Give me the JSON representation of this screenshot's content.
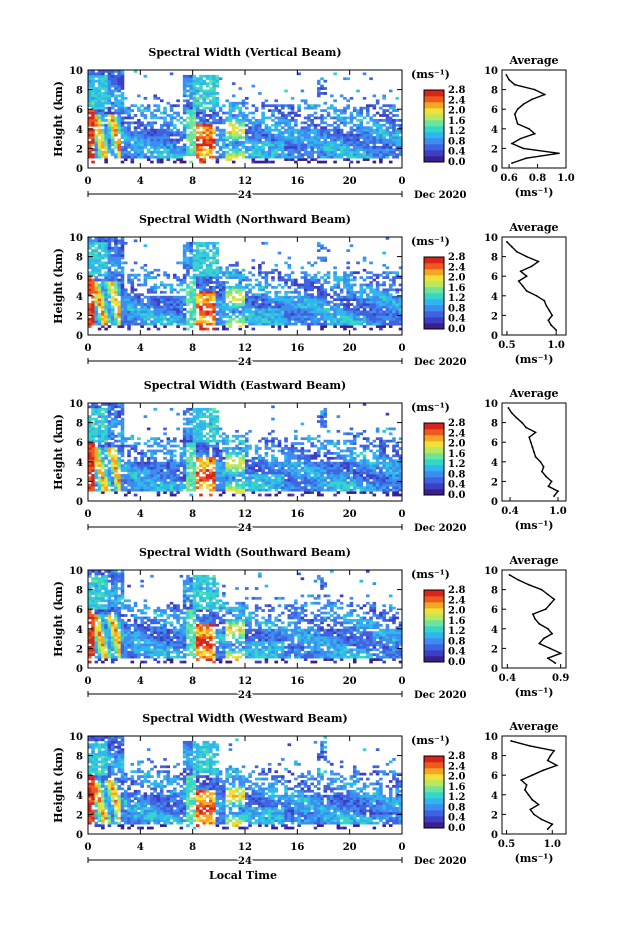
{
  "date_label": "Dec 2020",
  "day_marker": "24",
  "xlabel_bottom": "Local Time",
  "colorbar_unit": "(ms⁻¹)",
  "colorbar_ticks": [
    "0.0",
    "0.4",
    "0.8",
    "1.2",
    "1.6",
    "2.0",
    "2.4",
    "2.8"
  ],
  "colormap": [
    "#3b1f8f",
    "#3c3fc4",
    "#3f63e0",
    "#3d8cf0",
    "#2fb6ee",
    "#35d6c8",
    "#6ee39a",
    "#b8e85c",
    "#f0e03a",
    "#f5a623",
    "#ee5a1d",
    "#d9241b"
  ],
  "chart_data": [
    {
      "type": "heatmap",
      "title": "Spectral Width (Vertical Beam)",
      "ylabel": "Height (km)",
      "ylim": [
        0,
        10
      ],
      "xlim": [
        0,
        24
      ],
      "x_ticks": [
        "0",
        "4",
        "8",
        "12",
        "16",
        "20",
        "0"
      ],
      "y_ticks": [
        "0",
        "2",
        "4",
        "6",
        "8",
        "10"
      ],
      "colorbar_range": [
        0.0,
        2.8
      ],
      "average_profile": {
        "title": "Average",
        "xlabel": "(ms⁻¹)",
        "x_ticks": [
          "0.6",
          "0.8",
          "1.0"
        ],
        "xlim": [
          0.55,
          1.0
        ],
        "height_km": [
          0.5,
          1.0,
          1.5,
          2.0,
          2.5,
          3.0,
          3.5,
          4.0,
          4.5,
          5.0,
          5.5,
          6.0,
          6.5,
          7.0,
          7.5,
          8.0,
          8.5,
          9.0,
          9.5
        ],
        "width": [
          0.62,
          0.72,
          0.95,
          0.7,
          0.62,
          0.68,
          0.78,
          0.74,
          0.66,
          0.65,
          0.64,
          0.66,
          0.7,
          0.76,
          0.85,
          0.78,
          0.64,
          0.6,
          0.58
        ]
      }
    },
    {
      "type": "heatmap",
      "title": "Spectral Width (Northward Beam)",
      "ylabel": "Height (km)",
      "ylim": [
        0,
        10
      ],
      "xlim": [
        0,
        24
      ],
      "x_ticks": [
        "0",
        "4",
        "8",
        "12",
        "16",
        "20",
        "0"
      ],
      "y_ticks": [
        "0",
        "2",
        "4",
        "6",
        "8",
        "10"
      ],
      "colorbar_range": [
        0.0,
        2.8
      ],
      "average_profile": {
        "title": "Average",
        "xlabel": "(ms⁻¹)",
        "x_ticks": [
          "0.5",
          "1.0"
        ],
        "xlim": [
          0.45,
          1.1
        ],
        "height_km": [
          0.5,
          1.0,
          1.5,
          2.0,
          2.5,
          3.0,
          3.5,
          4.0,
          4.5,
          5.0,
          5.5,
          6.0,
          6.5,
          7.0,
          7.5,
          8.0,
          8.5,
          9.0,
          9.5
        ],
        "width": [
          1.0,
          0.95,
          0.92,
          0.96,
          0.93,
          0.9,
          0.88,
          0.8,
          0.7,
          0.66,
          0.62,
          0.7,
          0.64,
          0.75,
          0.82,
          0.7,
          0.6,
          0.55,
          0.5
        ]
      }
    },
    {
      "type": "heatmap",
      "title": "Spectral Width (Eastward Beam)",
      "ylabel": "Height (km)",
      "ylim": [
        0,
        10
      ],
      "xlim": [
        0,
        24
      ],
      "x_ticks": [
        "0",
        "4",
        "8",
        "12",
        "16",
        "20",
        "0"
      ],
      "y_ticks": [
        "0",
        "2",
        "4",
        "6",
        "8",
        "10"
      ],
      "colorbar_range": [
        0.0,
        2.8
      ],
      "average_profile": {
        "title": "Average",
        "xlabel": "(ms⁻¹)",
        "x_ticks": [
          "0.4",
          "1.0"
        ],
        "xlim": [
          0.3,
          1.1
        ],
        "height_km": [
          0.5,
          1.0,
          1.5,
          2.0,
          2.5,
          3.0,
          3.5,
          4.0,
          4.5,
          5.0,
          5.5,
          6.0,
          6.5,
          7.0,
          7.5,
          8.0,
          8.5,
          9.0,
          9.5
        ],
        "width": [
          0.95,
          1.0,
          0.88,
          0.92,
          0.85,
          0.8,
          0.82,
          0.78,
          0.72,
          0.7,
          0.68,
          0.66,
          0.64,
          0.72,
          0.6,
          0.55,
          0.48,
          0.42,
          0.38
        ]
      }
    },
    {
      "type": "heatmap",
      "title": "Spectral Width (Southward Beam)",
      "ylabel": "Height (km)",
      "ylim": [
        0,
        10
      ],
      "xlim": [
        0,
        24
      ],
      "x_ticks": [
        "0",
        "4",
        "8",
        "12",
        "16",
        "20",
        "0"
      ],
      "y_ticks": [
        "0",
        "2",
        "4",
        "6",
        "8",
        "10"
      ],
      "colorbar_range": [
        0.0,
        2.8
      ],
      "average_profile": {
        "title": "Average",
        "xlabel": "(ms⁻¹)",
        "x_ticks": [
          "0.4",
          "0.9"
        ],
        "xlim": [
          0.35,
          0.95
        ],
        "height_km": [
          0.5,
          1.0,
          1.5,
          2.0,
          2.5,
          3.0,
          3.5,
          4.0,
          4.5,
          5.0,
          5.5,
          6.0,
          6.5,
          7.0,
          7.5,
          8.0,
          8.5,
          9.0,
          9.5
        ],
        "width": [
          0.85,
          0.78,
          0.9,
          0.8,
          0.7,
          0.74,
          0.82,
          0.78,
          0.7,
          0.66,
          0.64,
          0.76,
          0.8,
          0.84,
          0.78,
          0.72,
          0.6,
          0.5,
          0.42
        ]
      }
    },
    {
      "type": "heatmap",
      "title": "Spectral Width (Westward Beam)",
      "ylabel": "Height (km)",
      "ylim": [
        0,
        10
      ],
      "xlim": [
        0,
        24
      ],
      "x_ticks": [
        "0",
        "4",
        "8",
        "12",
        "16",
        "20",
        "0"
      ],
      "y_ticks": [
        "0",
        "2",
        "4",
        "6",
        "8",
        "10"
      ],
      "colorbar_range": [
        0.0,
        2.8
      ],
      "average_profile": {
        "title": "Average",
        "xlabel": "(ms⁻¹)",
        "x_ticks": [
          "0.5",
          "1.0"
        ],
        "xlim": [
          0.45,
          1.15
        ],
        "height_km": [
          0.5,
          1.0,
          1.5,
          2.0,
          2.5,
          3.0,
          3.5,
          4.0,
          4.5,
          5.0,
          5.5,
          6.0,
          6.5,
          7.0,
          7.5,
          8.0,
          8.5,
          9.0,
          9.5
        ],
        "width": [
          0.95,
          1.0,
          0.88,
          0.8,
          0.76,
          0.85,
          0.78,
          0.74,
          0.7,
          0.72,
          0.66,
          0.78,
          0.9,
          1.05,
          0.95,
          0.98,
          1.02,
          0.75,
          0.55
        ]
      }
    }
  ]
}
